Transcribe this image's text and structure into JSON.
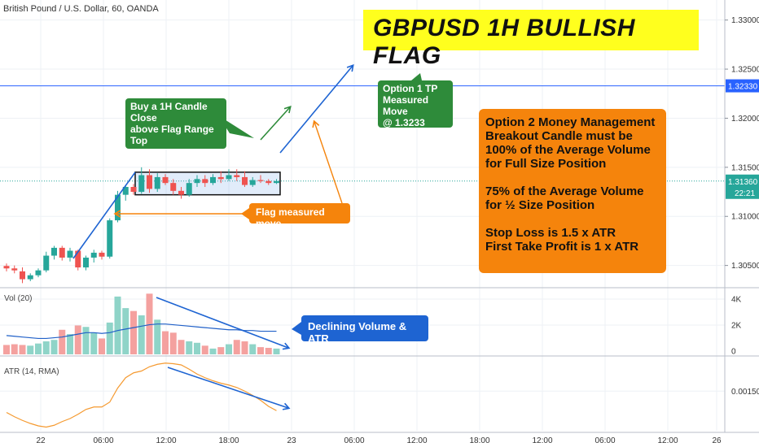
{
  "header": {
    "symbol": "British Pound / U.S. Dollar, 60, OANDA",
    "title": "GBPUSD 1H BULLISH FLAG"
  },
  "annotations": {
    "buy_note": [
      "Buy a 1H Candle Close",
      "above Flag Range Top"
    ],
    "option1_tp": [
      "Option 1 TP",
      "Measured Move",
      "@ 1.3233"
    ],
    "flag_measured": "Flag measured move",
    "declining": "Declining Volume & ATR",
    "money_management": {
      "para1": [
        "Option 2 Money Management",
        "Breakout Candle must be",
        "100% of the Average Volume",
        "for Full Size Position"
      ],
      "para2": [
        "75% of the Average Volume",
        "for ½ Size Position"
      ],
      "para3": [
        "Stop Loss is 1.5 x ATR",
        "First Take Profit is 1 x ATR"
      ]
    }
  },
  "price_axis": {
    "ticks": [
      "1.33000",
      "1.32500",
      "1.32000",
      "1.31500",
      "1.31000",
      "1.30500"
    ],
    "tp_label": "1.32330",
    "current_price": "1.31360",
    "countdown": "22:21"
  },
  "volume_pane": {
    "label": "Vol (20)",
    "ticks": [
      "4K",
      "2K",
      "0"
    ]
  },
  "atr_pane": {
    "label": "ATR (14, RMA)",
    "ticks": [
      "0.00150"
    ]
  },
  "time_axis": {
    "ticks": [
      "22",
      "06:00",
      "12:00",
      "18:00",
      "23",
      "06:00",
      "12:00",
      "18:00",
      "12:00",
      "06:00",
      "12:00",
      "26"
    ]
  },
  "colors": {
    "up": "#26a69a",
    "down": "#ef5350",
    "vol_up": "#8fd4c8",
    "vol_down": "#f4a19f",
    "trend_arrow": "#1e64d2",
    "tp_line": "#2962ff",
    "breakout_arrow": "#2e8b3a",
    "orange_arrow": "#f5840c",
    "vol_ma": "#2060c8",
    "atr": "#f59a30",
    "title_bg": "#ffff1e"
  },
  "chart_data": {
    "type": "candlestick",
    "price_range": [
      1.3029,
      1.3308
    ],
    "tp_level": 1.3233,
    "current_price": 1.3136,
    "flag_range": [
      1.3122,
      1.3145
    ],
    "candles": [
      {
        "o": 1.30495,
        "h": 1.3052,
        "l": 1.3044,
        "c": 1.3047
      },
      {
        "o": 1.3047,
        "h": 1.305,
        "l": 1.3042,
        "c": 1.3045
      },
      {
        "o": 1.3044,
        "h": 1.3048,
        "l": 1.3032,
        "c": 1.3036
      },
      {
        "o": 1.3036,
        "h": 1.3042,
        "l": 1.3034,
        "c": 1.304
      },
      {
        "o": 1.304,
        "h": 1.3047,
        "l": 1.3038,
        "c": 1.3045
      },
      {
        "o": 1.3045,
        "h": 1.3064,
        "l": 1.3043,
        "c": 1.306
      },
      {
        "o": 1.306,
        "h": 1.307,
        "l": 1.3056,
        "c": 1.3068
      },
      {
        "o": 1.3068,
        "h": 1.307,
        "l": 1.3055,
        "c": 1.3058
      },
      {
        "o": 1.3058,
        "h": 1.3068,
        "l": 1.3054,
        "c": 1.3065
      },
      {
        "o": 1.3065,
        "h": 1.3066,
        "l": 1.3045,
        "c": 1.3048
      },
      {
        "o": 1.3048,
        "h": 1.306,
        "l": 1.3045,
        "c": 1.3058
      },
      {
        "o": 1.3058,
        "h": 1.3066,
        "l": 1.3053,
        "c": 1.3063
      },
      {
        "o": 1.3063,
        "h": 1.3065,
        "l": 1.3056,
        "c": 1.3059
      },
      {
        "o": 1.3059,
        "h": 1.3098,
        "l": 1.3057,
        "c": 1.3096
      },
      {
        "o": 1.3096,
        "h": 1.3126,
        "l": 1.3094,
        "c": 1.3122
      },
      {
        "o": 1.3122,
        "h": 1.3132,
        "l": 1.3116,
        "c": 1.313
      },
      {
        "o": 1.313,
        "h": 1.3133,
        "l": 1.3122,
        "c": 1.3125
      },
      {
        "o": 1.3125,
        "h": 1.315,
        "l": 1.3123,
        "c": 1.3142
      },
      {
        "o": 1.3142,
        "h": 1.3148,
        "l": 1.3124,
        "c": 1.3128
      },
      {
        "o": 1.3128,
        "h": 1.3144,
        "l": 1.3125,
        "c": 1.314
      },
      {
        "o": 1.314,
        "h": 1.3143,
        "l": 1.3132,
        "c": 1.3134
      },
      {
        "o": 1.3134,
        "h": 1.3138,
        "l": 1.3122,
        "c": 1.3126
      },
      {
        "o": 1.3126,
        "h": 1.313,
        "l": 1.3118,
        "c": 1.3122
      },
      {
        "o": 1.3122,
        "h": 1.3138,
        "l": 1.312,
        "c": 1.3134
      },
      {
        "o": 1.3134,
        "h": 1.3142,
        "l": 1.313,
        "c": 1.3138
      },
      {
        "o": 1.3138,
        "h": 1.3142,
        "l": 1.313,
        "c": 1.3134
      },
      {
        "o": 1.3134,
        "h": 1.3143,
        "l": 1.3132,
        "c": 1.314
      },
      {
        "o": 1.314,
        "h": 1.3146,
        "l": 1.3134,
        "c": 1.3138
      },
      {
        "o": 1.3138,
        "h": 1.3148,
        "l": 1.3136,
        "c": 1.3142
      },
      {
        "o": 1.3142,
        "h": 1.3148,
        "l": 1.3136,
        "c": 1.314
      },
      {
        "o": 1.314,
        "h": 1.3146,
        "l": 1.313,
        "c": 1.3132
      },
      {
        "o": 1.3132,
        "h": 1.314,
        "l": 1.313,
        "c": 1.3137
      },
      {
        "o": 1.3137,
        "h": 1.3142,
        "l": 1.3134,
        "c": 1.3136
      },
      {
        "o": 1.3136,
        "h": 1.3138,
        "l": 1.3132,
        "c": 1.3134
      },
      {
        "o": 1.3134,
        "h": 1.3138,
        "l": 1.3133,
        "c": 1.3136
      }
    ],
    "volume": [
      650,
      700,
      650,
      600,
      750,
      900,
      1000,
      1700,
      1400,
      2000,
      1900,
      1500,
      1100,
      2200,
      4000,
      3200,
      3000,
      2700,
      4200,
      2400,
      1600,
      1500,
      1000,
      900,
      800,
      600,
      400,
      500,
      700,
      1000,
      900,
      700,
      500,
      450,
      400
    ],
    "volume_ma": [
      1300,
      1250,
      1200,
      1150,
      1100,
      1100,
      1150,
      1200,
      1300,
      1400,
      1500,
      1500,
      1450,
      1500,
      1650,
      1750,
      1850,
      1950,
      2050,
      2100,
      2100,
      2050,
      2000,
      1950,
      1900,
      1850,
      1800,
      1750,
      1700,
      1700,
      1650,
      1650,
      1600,
      1600,
      1600
    ],
    "volume_range": [
      0,
      4500
    ],
    "atr": [
      0.00115,
      0.00108,
      0.00102,
      0.00097,
      0.00093,
      0.00091,
      0.00094,
      0.001,
      0.00105,
      0.00112,
      0.0012,
      0.00124,
      0.00124,
      0.00132,
      0.00155,
      0.00172,
      0.0018,
      0.00183,
      0.0019,
      0.00194,
      0.00196,
      0.00195,
      0.00193,
      0.00186,
      0.00178,
      0.00172,
      0.00167,
      0.00163,
      0.0016,
      0.00156,
      0.0015,
      0.00143,
      0.00135,
      0.00125,
      0.00118
    ],
    "atr_range": [
      0.00085,
      0.00205
    ]
  }
}
